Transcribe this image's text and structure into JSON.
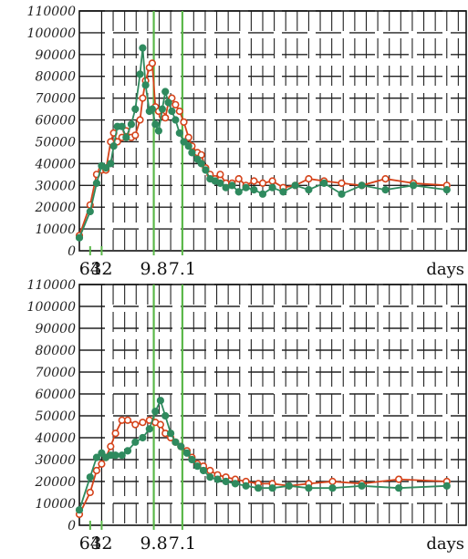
{
  "chart_data": [
    {
      "type": "line",
      "ylim": [
        0,
        110000
      ],
      "yticks": [
        0,
        10000,
        20000,
        30000,
        40000,
        50000,
        60000,
        70000,
        80000,
        90000,
        100000,
        110000
      ],
      "xticks": [
        {
          "label": "64",
          "x": 64
        },
        {
          "label": "32",
          "x": 32
        },
        {
          "label": "9.8",
          "x": 9.8
        },
        {
          "label": "7.1",
          "x": 7.1
        }
      ],
      "xunit": "days",
      "xlim_reciprocal": [
        1024,
        1.9
      ],
      "vlines": [
        9.8,
        7.1
      ],
      "grid": true,
      "series": [
        {
          "color": "#d5431a",
          "marker": "open-circle",
          "x": [
            1024,
            64,
            41,
            32,
            27,
            23,
            21,
            19,
            17,
            15.5,
            14,
            13,
            12,
            11.5,
            11,
            10.4,
            10,
            9.6,
            9.2,
            8.8,
            8.5,
            8.2,
            7.9,
            7.6,
            7.3,
            7.0,
            6.7,
            6.5,
            6.2,
            6.0,
            5.8,
            5.6,
            5.4,
            5.2,
            5.0,
            4.8,
            4.6,
            4.4,
            4.2,
            4.0,
            3.8,
            3.6,
            3.4,
            3.2,
            3.0,
            2.8,
            2.6,
            2.4,
            2.2,
            2.0
          ],
          "y": [
            7000,
            21000,
            35000,
            37000,
            37000,
            50000,
            54000,
            50000,
            52000,
            55000,
            52000,
            53000,
            60000,
            70000,
            78000,
            84000,
            86000,
            66000,
            64000,
            62000,
            61000,
            68000,
            70000,
            67000,
            64000,
            59000,
            52000,
            48000,
            45000,
            44000,
            38000,
            35000,
            33000,
            35000,
            31000,
            31000,
            33000,
            30000,
            32000,
            31000,
            32000,
            29000,
            30000,
            33000,
            32000,
            31000,
            30000,
            33000,
            31000,
            30000
          ]
        },
        {
          "color": "#2f8a5e",
          "marker": "filled-circle",
          "x": [
            1024,
            64,
            41,
            32,
            27,
            23,
            21,
            19,
            17,
            15.5,
            14,
            13,
            12,
            11.5,
            11,
            10.4,
            10,
            9.6,
            9.2,
            8.8,
            8.5,
            8.2,
            7.9,
            7.6,
            7.3,
            7.0,
            6.7,
            6.5,
            6.2,
            6.0,
            5.8,
            5.6,
            5.4,
            5.2,
            5.0,
            4.8,
            4.6,
            4.4,
            4.2,
            4.0,
            3.8,
            3.6,
            3.4,
            3.2,
            3.0,
            2.8,
            2.6,
            2.4,
            2.2,
            2.0
          ],
          "y": [
            6000,
            18000,
            31000,
            39000,
            38000,
            40000,
            48000,
            57000,
            57000,
            52000,
            58000,
            65000,
            81000,
            93000,
            76000,
            64000,
            65000,
            58000,
            55000,
            65000,
            73000,
            68000,
            64000,
            60000,
            54000,
            50000,
            48000,
            45000,
            42000,
            40000,
            37000,
            33000,
            32000,
            31000,
            29000,
            30000,
            27000,
            29000,
            28000,
            26000,
            29000,
            27000,
            30000,
            28000,
            31000,
            26000,
            30000,
            28000,
            30000,
            28000
          ]
        }
      ]
    },
    {
      "type": "line",
      "ylim": [
        0,
        110000
      ],
      "yticks": [
        0,
        10000,
        20000,
        30000,
        40000,
        50000,
        60000,
        70000,
        80000,
        90000,
        100000,
        110000
      ],
      "xticks": [
        {
          "label": "64",
          "x": 64
        },
        {
          "label": "32",
          "x": 32
        },
        {
          "label": "9.8",
          "x": 9.8
        },
        {
          "label": "7.1",
          "x": 7.1
        }
      ],
      "xunit": "days",
      "xlim_reciprocal": [
        1024,
        1.9
      ],
      "vlines": [
        9.8,
        7.1
      ],
      "grid": true,
      "series": [
        {
          "color": "#d5431a",
          "marker": "open-circle",
          "x": [
            1024,
            64,
            41,
            32,
            27,
            23,
            20,
            17,
            15,
            13,
            11.5,
            10.4,
            9.6,
            9.0,
            8.5,
            8.0,
            7.6,
            7.2,
            6.8,
            6.5,
            6.2,
            5.9,
            5.6,
            5.3,
            5.0,
            4.7,
            4.4,
            4.1,
            3.8,
            3.5,
            3.2,
            2.9,
            2.6,
            2.3,
            2.0
          ],
          "y": [
            5000,
            15000,
            25000,
            28000,
            31000,
            36000,
            42000,
            48000,
            48000,
            46000,
            47000,
            48000,
            47000,
            46000,
            42000,
            40000,
            38000,
            36000,
            34000,
            31000,
            28000,
            27000,
            25000,
            23000,
            22000,
            21000,
            20000,
            19000,
            19000,
            18000,
            19000,
            20000,
            19000,
            21000,
            20000
          ]
        },
        {
          "color": "#2f8a5e",
          "marker": "filled-circle",
          "x": [
            1024,
            64,
            41,
            32,
            27,
            23,
            20,
            17,
            15,
            13,
            11.5,
            10.4,
            9.6,
            9.0,
            8.5,
            8.0,
            7.6,
            7.2,
            6.8,
            6.5,
            6.2,
            5.9,
            5.6,
            5.3,
            5.0,
            4.7,
            4.4,
            4.1,
            3.8,
            3.5,
            3.2,
            2.9,
            2.6,
            2.3,
            2.0
          ],
          "y": [
            7000,
            22000,
            31000,
            33000,
            31000,
            32000,
            32000,
            32000,
            34000,
            38000,
            40000,
            44000,
            52000,
            57000,
            50000,
            42000,
            38000,
            36000,
            33000,
            30000,
            27000,
            25000,
            22000,
            21000,
            20000,
            19000,
            18000,
            17000,
            17000,
            18000,
            17000,
            17000,
            18000,
            17000,
            18000
          ]
        }
      ]
    }
  ]
}
